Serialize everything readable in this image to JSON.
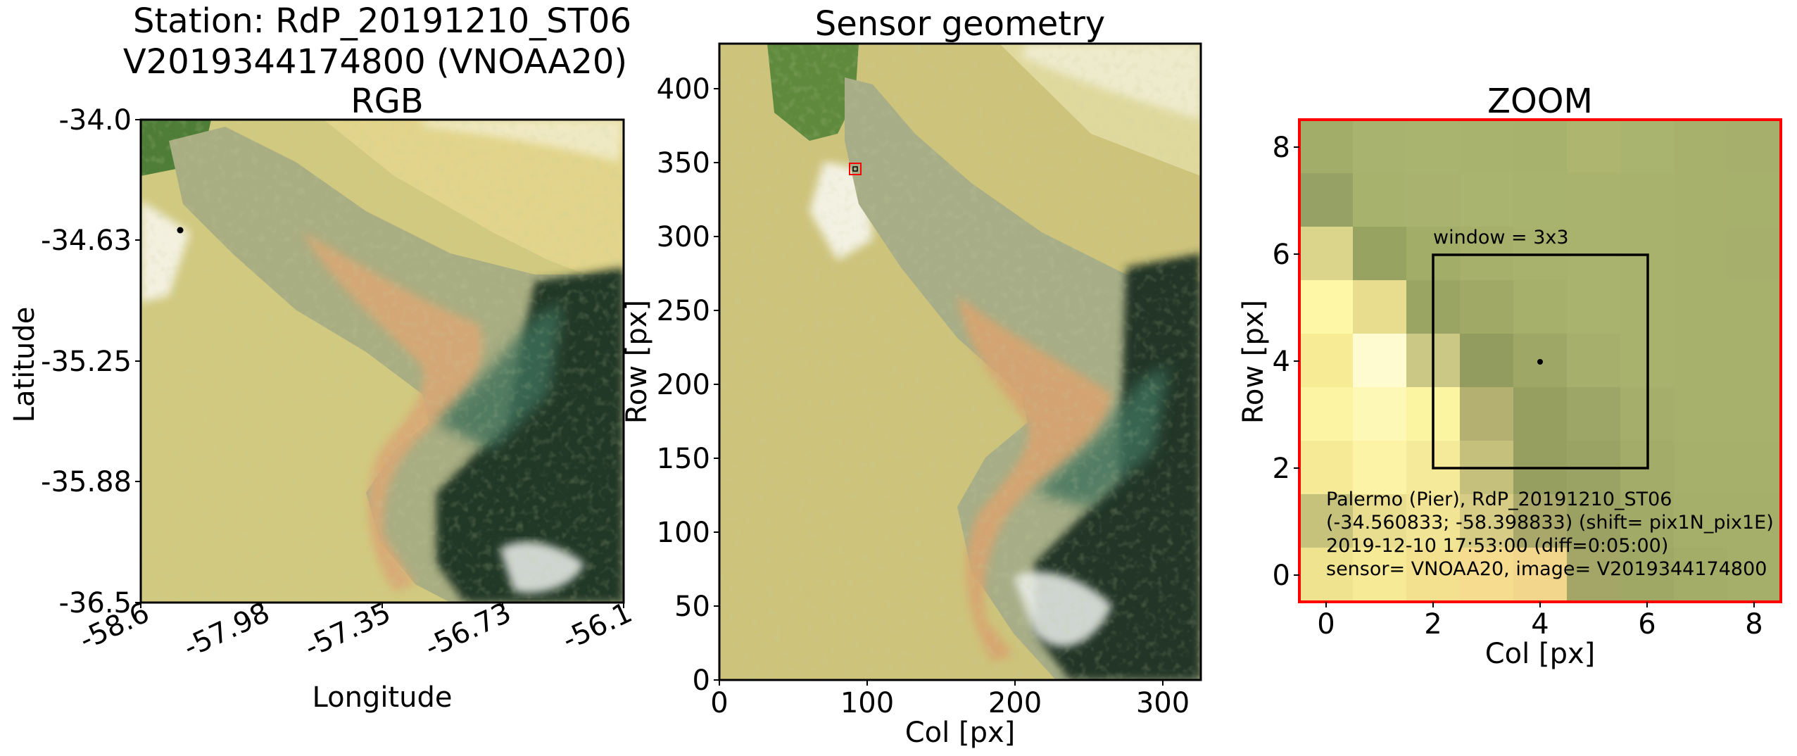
{
  "panels": {
    "rgb": {
      "title_line1": "Station: RdP_20191210_ST06",
      "title_line2": "V2019344174800 (VNOAA20)",
      "title_line3": "RGB",
      "xlabel": "Longitude",
      "ylabel": "Latitude",
      "xticks": [
        "-58.6",
        "-57.98",
        "-57.35",
        "-56.73",
        "-56.1"
      ],
      "yticks": [
        "-34.0",
        "-34.63",
        "-35.25",
        "-35.88",
        "-36.5"
      ]
    },
    "sensor": {
      "title": "Sensor geometry",
      "xlabel": "Col [px]",
      "ylabel": "Row [px]",
      "xticks": [
        "0",
        "100",
        "200",
        "300"
      ],
      "yticks": [
        "0",
        "50",
        "100",
        "150",
        "200",
        "250",
        "300",
        "350",
        "400"
      ]
    },
    "zoom": {
      "title": "ZOOM",
      "xlabel": "Col [px]",
      "ylabel": "Row [px]",
      "xticks": [
        "0",
        "2",
        "4",
        "6",
        "8"
      ],
      "yticks": [
        "0",
        "2",
        "4",
        "6",
        "8"
      ],
      "window_label": "window = 3x3",
      "info_line1": "Palermo (Pier), RdP_20191210_ST06",
      "info_line2": "(-34.560833; -58.398833) (shift= pix1N_pix1E)",
      "info_line3": "2019-12-10 17:53:00 (diff=0:05:00)",
      "info_line4": "sensor= VNOAA20, image= V2019344174800",
      "frame_color": "#ff0000"
    }
  }
}
